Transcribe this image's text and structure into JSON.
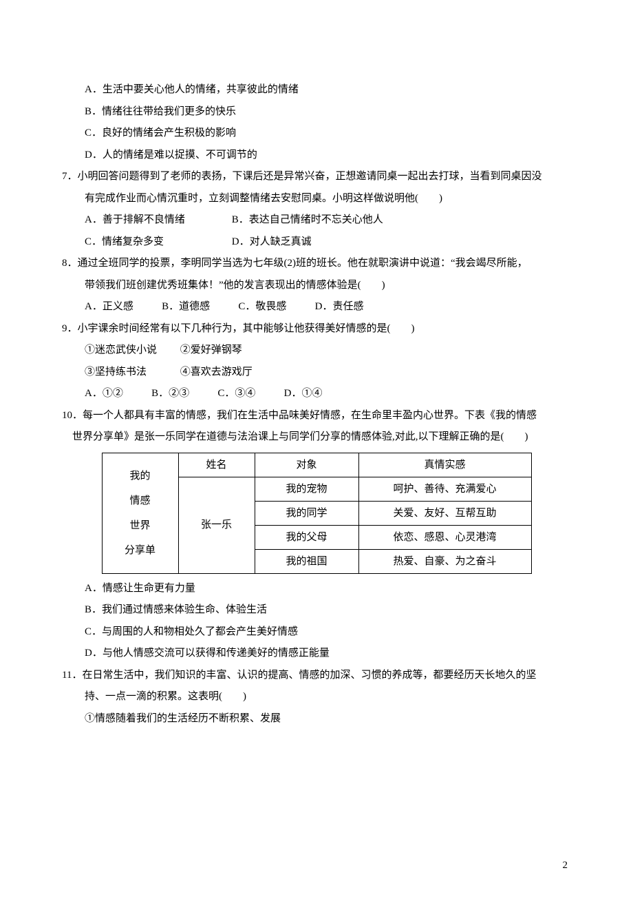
{
  "q6": {
    "A": "A．生活中要关心他人的情绪，共享彼此的情绪",
    "B": "B．情绪往往带给我们更多的快乐",
    "C": "C．良好的情绪会产生积极的影响",
    "D": "D．人的情绪是难以捉摸、不可调节的"
  },
  "q7": {
    "text": "7．小明回答问题得到了老师的表扬，下课后还是异常兴奋，正想邀请同桌一起出去打球，当看到同桌因没",
    "text2": "有完成作业而心情沉重时，立刻调整情绪去安慰同桌。小明这样做说明他(　　)",
    "A": "A．善于排解不良情绪",
    "B": "B．表达自己情绪时不忘关心他人",
    "C": "C．情绪复杂多变",
    "D": "D．对人缺乏真诚"
  },
  "q8": {
    "text": "8．通过全班同学的投票，李明同学当选为七年级(2)班的班长。他在就职演讲中说道：“我会竭尽所能，",
    "text2": "带领我们班创建优秀班集体！”他的发言表现出的情感体验是(　　)",
    "A": "A．正义感",
    "B": "B．道德感",
    "C": "C．敬畏感",
    "D": "D．责任感"
  },
  "q9": {
    "text": "9．小宇课余时间经常有以下几种行为，其中能够让他获得美好情感的是(　　)",
    "s1a": "①迷恋武侠小说",
    "s1b": "②爱好弹钢琴",
    "s2a": "③坚持练书法",
    "s2b": "④喜欢去游戏厅",
    "A": "A．①②",
    "B": "B．②③",
    "C": "C．③④",
    "D": "D．①④"
  },
  "q10": {
    "text": "10．每一个人都具有丰富的情感，我们在生活中品味美好情感，在生命里丰盈内心世界。下表《我的情感",
    "text2": "世界分享单》是张一乐同学在道德与法治课上与同学们分享的情感体验,对此,以下理解正确的是(　　)",
    "table": {
      "rowhead_lines": [
        "我的",
        "情感",
        "世界",
        "分享单"
      ],
      "header": {
        "c1": "姓名",
        "c2": "对象",
        "c3": "真情实感"
      },
      "name": "张一乐",
      "rows": [
        {
          "obj": "我的宠物",
          "feel": "呵护、善待、充满爱心"
        },
        {
          "obj": "我的同学",
          "feel": "关爱、友好、互帮互助"
        },
        {
          "obj": "我的父母",
          "feel": "依恋、感恩、心灵港湾"
        },
        {
          "obj": "我的祖国",
          "feel": "热爱、自豪、为之奋斗"
        }
      ]
    },
    "A": "A．情感让生命更有力量",
    "B": "B．我们通过情感来体验生命、体验生活",
    "C": "C．与周围的人和物相处久了都会产生美好情感",
    "D": "D．与他人情感交流可以获得和传递美好的情感正能量"
  },
  "q11": {
    "text": "11．在日常生活中，我们知识的丰富、认识的提高、情感的加深、习惯的养成等，都要经历天长地久的坚",
    "text2": "持、一点一滴的积累。这表明(　　)",
    "s1": "①情感随着我们的生活经历不断积累、发展"
  },
  "page_number": "2"
}
